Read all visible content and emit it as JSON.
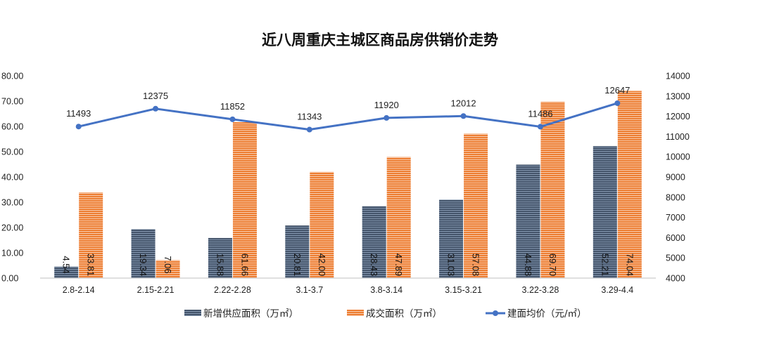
{
  "chart_data": {
    "type": "bar",
    "title": "近八周重庆主城区商品房供销价走势",
    "categories": [
      "2.8-2.14",
      "2.15-2.21",
      "2.22-2.28",
      "3.1-3.7",
      "3.8-3.14",
      "3.15-3.21",
      "3.22-3.28",
      "3.29-4.4"
    ],
    "series": [
      {
        "name": "新增供应面积（万㎡）",
        "kind": "bar",
        "axis": "left",
        "color": "#44546A",
        "values": [
          4.54,
          19.34,
          15.88,
          20.81,
          28.43,
          31.03,
          44.88,
          52.21
        ],
        "labels": [
          "4.54",
          "19.34",
          "15.88",
          "20.81",
          "28.43",
          "31.03",
          "44.88",
          "52.21"
        ]
      },
      {
        "name": "成交面积（万㎡）",
        "kind": "bar",
        "axis": "left",
        "color": "#ED7D31",
        "values": [
          33.81,
          7.06,
          61.66,
          42.0,
          47.89,
          57.08,
          69.7,
          74.04
        ],
        "labels": [
          "33.81",
          "7.06",
          "61.66",
          "42.00",
          "47.89",
          "57.08",
          "69.70",
          "74.04"
        ]
      },
      {
        "name": "建面均价（元/㎡）",
        "kind": "line",
        "axis": "right",
        "color": "#4472C4",
        "values": [
          11493,
          12375,
          11852,
          11343,
          11920,
          12012,
          11486,
          12647
        ],
        "labels": [
          "11493",
          "12375",
          "11852",
          "11343",
          "11920",
          "12012",
          "11486",
          "12647"
        ]
      }
    ],
    "y_left": {
      "ylim": [
        0,
        80
      ],
      "ticks": [
        "0.00",
        "10.00",
        "20.00",
        "30.00",
        "40.00",
        "50.00",
        "60.00",
        "70.00",
        "80.00"
      ]
    },
    "y_right": {
      "ylim": [
        4000,
        14000
      ],
      "ticks": [
        "4000",
        "5000",
        "6000",
        "7000",
        "8000",
        "9000",
        "10000",
        "11000",
        "12000",
        "13000",
        "14000"
      ]
    },
    "grid": false,
    "legend": "bottom"
  }
}
